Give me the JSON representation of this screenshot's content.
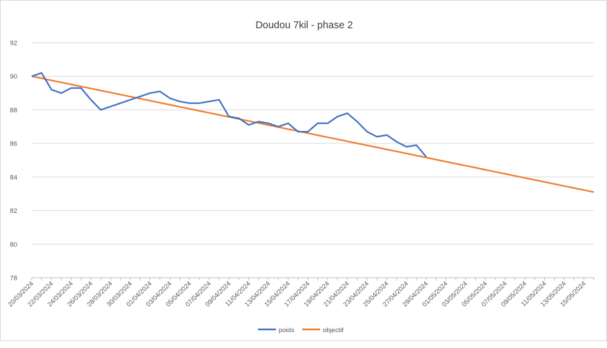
{
  "chart_data": {
    "type": "line",
    "title": "Doudou 7kil - phase 2",
    "xlabel": "",
    "ylabel": "",
    "ylim": [
      78,
      92
    ],
    "yticks": [
      78,
      80,
      82,
      84,
      86,
      88,
      90,
      92
    ],
    "grid": true,
    "legend_position": "bottom",
    "x_tick_labels": [
      "20/03/2024",
      "22/03/2024",
      "24/03/2024",
      "26/03/2024",
      "28/03/2024",
      "30/03/2024",
      "01/04/2024",
      "03/04/2024",
      "05/04/2024",
      "07/04/2024",
      "09/04/2024",
      "11/04/2024",
      "13/04/2024",
      "15/04/2024",
      "17/04/2024",
      "19/04/2024",
      "21/04/2024",
      "23/04/2024",
      "25/04/2024",
      "27/04/2024",
      "29/04/2024",
      "01/05/2024",
      "03/05/2024",
      "05/05/2024",
      "07/05/2024",
      "09/05/2024",
      "11/05/2024",
      "13/05/2024",
      "15/05/2024"
    ],
    "series": [
      {
        "name": "poids",
        "color": "#4472c4",
        "values": [
          90.0,
          90.2,
          89.2,
          89.0,
          89.3,
          89.3,
          88.6,
          88.0,
          88.2,
          88.4,
          88.6,
          88.8,
          89.0,
          89.1,
          88.7,
          88.5,
          88.4,
          88.4,
          88.5,
          88.6,
          87.6,
          87.5,
          87.1,
          87.3,
          87.2,
          87.0,
          87.2,
          86.7,
          86.7,
          87.2,
          87.2,
          87.6,
          87.8,
          87.3,
          86.7,
          86.4,
          86.5,
          86.1,
          85.8,
          85.9,
          85.2
        ]
      },
      {
        "name": "objectif",
        "color": "#ed7d31",
        "start": 90.0,
        "end": 83.1,
        "count": 58
      }
    ]
  }
}
